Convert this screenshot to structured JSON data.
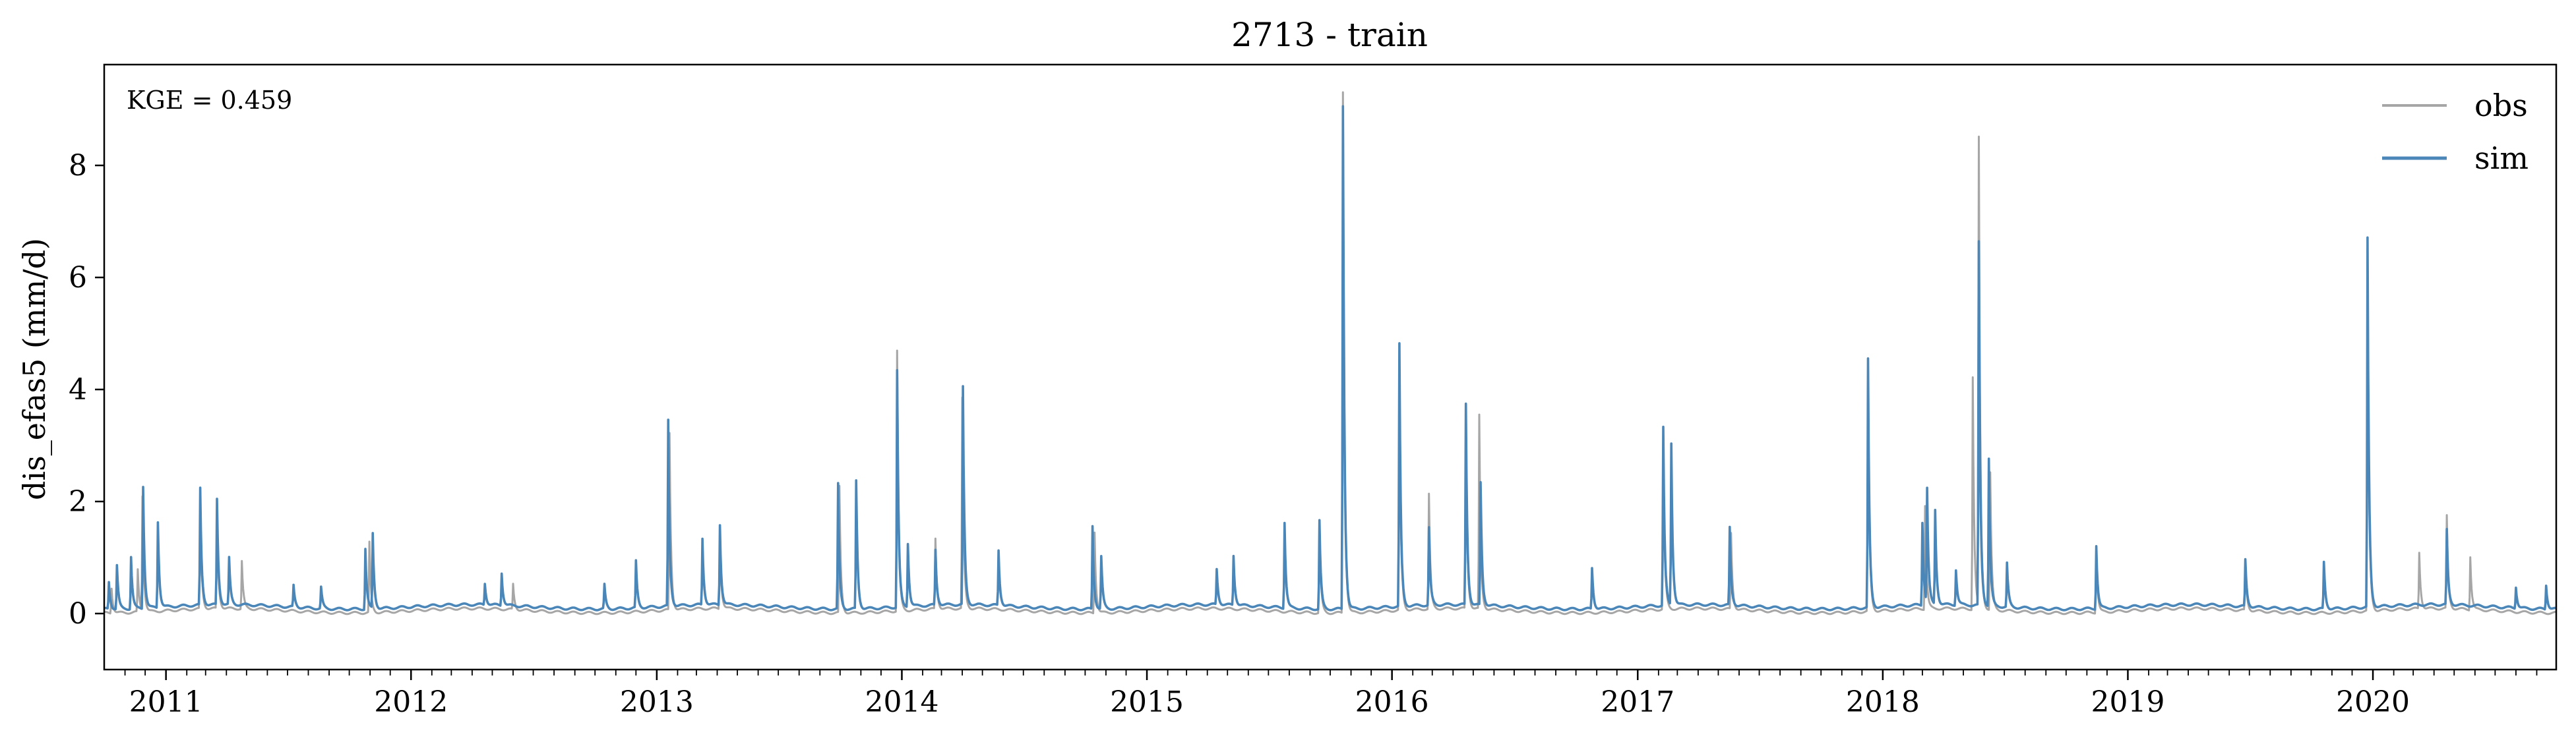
{
  "chart_data": {
    "type": "line",
    "title": "2713 - train",
    "ylabel": "dis_efas5 (mm/d)",
    "xlabel": "",
    "annotation": "KGE = 0.459",
    "xlim": [
      "2010-10-01",
      "2020-09-30"
    ],
    "ylim": [
      -1,
      9.8
    ],
    "yticks": [
      0,
      2,
      4,
      6,
      8
    ],
    "xticks": [
      {
        "date": "2011-01-01",
        "label": "2011"
      },
      {
        "date": "2012-01-01",
        "label": "2012"
      },
      {
        "date": "2013-01-01",
        "label": "2013"
      },
      {
        "date": "2014-01-01",
        "label": "2014"
      },
      {
        "date": "2015-01-01",
        "label": "2015"
      },
      {
        "date": "2016-01-01",
        "label": "2016"
      },
      {
        "date": "2017-01-01",
        "label": "2017"
      },
      {
        "date": "2018-01-01",
        "label": "2018"
      },
      {
        "date": "2019-01-01",
        "label": "2019"
      },
      {
        "date": "2020-01-01",
        "label": "2020"
      }
    ],
    "grid": false,
    "legend": {
      "position": "top-right",
      "entries": [
        "obs",
        "sim"
      ]
    },
    "series": [
      {
        "name": "obs",
        "color": "#a6a6a6",
        "baseline": 0.05,
        "peaks": [
          [
            "2010-10-12",
            0.5
          ],
          [
            "2010-11-20",
            0.8
          ],
          [
            "2010-11-27",
            2.1
          ],
          [
            "2011-02-21",
            2.0
          ],
          [
            "2011-03-18",
            1.8
          ],
          [
            "2011-04-24",
            0.9
          ],
          [
            "2011-10-31",
            1.3
          ],
          [
            "2012-06-01",
            0.5
          ],
          [
            "2013-01-20",
            3.2
          ],
          [
            "2013-04-05",
            1.4
          ],
          [
            "2013-09-30",
            2.3
          ],
          [
            "2013-12-25",
            4.7
          ],
          [
            "2014-02-20",
            1.3
          ],
          [
            "2014-04-01",
            3.8
          ],
          [
            "2014-10-15",
            1.5
          ],
          [
            "2015-09-15",
            1.6
          ],
          [
            "2015-10-20",
            9.35
          ],
          [
            "2016-01-12",
            4.5
          ],
          [
            "2016-02-25",
            2.1
          ],
          [
            "2016-04-20",
            3.4
          ],
          [
            "2016-05-10",
            3.5
          ],
          [
            "2017-02-08",
            3.1
          ],
          [
            "2017-05-20",
            1.4
          ],
          [
            "2017-12-10",
            4.3
          ],
          [
            "2018-03-05",
            1.9
          ],
          [
            "2018-05-15",
            4.2
          ],
          [
            "2018-05-24",
            8.4
          ],
          [
            "2018-06-10",
            2.5
          ],
          [
            "2018-11-15",
            1.1
          ],
          [
            "2019-06-25",
            0.9
          ],
          [
            "2019-12-24",
            6.5
          ],
          [
            "2020-03-10",
            1.05
          ],
          [
            "2020-04-20",
            1.7
          ],
          [
            "2020-05-25",
            1.0
          ]
        ]
      },
      {
        "name": "sim",
        "color": "#4a86b8",
        "baseline": 0.12,
        "peaks": [
          [
            "2010-10-08",
            0.6
          ],
          [
            "2010-10-20",
            0.9
          ],
          [
            "2010-11-10",
            1.05
          ],
          [
            "2010-11-28",
            2.3
          ],
          [
            "2010-12-20",
            1.65
          ],
          [
            "2011-02-21",
            2.2
          ],
          [
            "2011-03-18",
            2.0
          ],
          [
            "2011-04-05",
            0.95
          ],
          [
            "2011-07-10",
            0.5
          ],
          [
            "2011-08-20",
            0.5
          ],
          [
            "2011-10-25",
            1.2
          ],
          [
            "2011-11-05",
            1.45
          ],
          [
            "2012-04-20",
            0.5
          ],
          [
            "2012-05-15",
            0.7
          ],
          [
            "2012-10-15",
            0.55
          ],
          [
            "2012-12-01",
            0.95
          ],
          [
            "2013-01-18",
            3.43
          ],
          [
            "2013-03-10",
            1.3
          ],
          [
            "2013-04-05",
            1.55
          ],
          [
            "2013-09-28",
            2.35
          ],
          [
            "2013-10-25",
            2.4
          ],
          [
            "2013-12-25",
            4.35
          ],
          [
            "2014-01-10",
            1.25
          ],
          [
            "2014-02-20",
            1.1
          ],
          [
            "2014-04-02",
            4.0
          ],
          [
            "2014-05-25",
            1.1
          ],
          [
            "2014-10-12",
            1.6
          ],
          [
            "2014-10-25",
            1.05
          ],
          [
            "2015-04-15",
            0.75
          ],
          [
            "2015-05-10",
            1.0
          ],
          [
            "2015-07-25",
            1.65
          ],
          [
            "2015-09-15",
            1.7
          ],
          [
            "2015-10-20",
            9.1
          ],
          [
            "2016-01-12",
            4.8
          ],
          [
            "2016-02-25",
            1.5
          ],
          [
            "2016-04-20",
            3.7
          ],
          [
            "2016-05-12",
            2.3
          ],
          [
            "2016-10-25",
            0.85
          ],
          [
            "2017-02-08",
            3.3
          ],
          [
            "2017-02-20",
            3.0
          ],
          [
            "2017-05-18",
            1.5
          ],
          [
            "2017-12-10",
            4.55
          ],
          [
            "2018-03-01",
            1.6
          ],
          [
            "2018-03-08",
            2.15
          ],
          [
            "2018-03-20",
            1.8
          ],
          [
            "2018-04-20",
            0.75
          ],
          [
            "2018-05-24",
            6.6
          ],
          [
            "2018-06-08",
            2.75
          ],
          [
            "2018-07-05",
            0.9
          ],
          [
            "2018-11-15",
            1.25
          ],
          [
            "2019-06-25",
            0.95
          ],
          [
            "2019-10-20",
            0.95
          ],
          [
            "2019-12-24",
            6.7
          ],
          [
            "2020-04-20",
            1.45
          ],
          [
            "2020-08-01",
            0.5
          ],
          [
            "2020-09-15",
            0.55
          ]
        ]
      }
    ]
  }
}
